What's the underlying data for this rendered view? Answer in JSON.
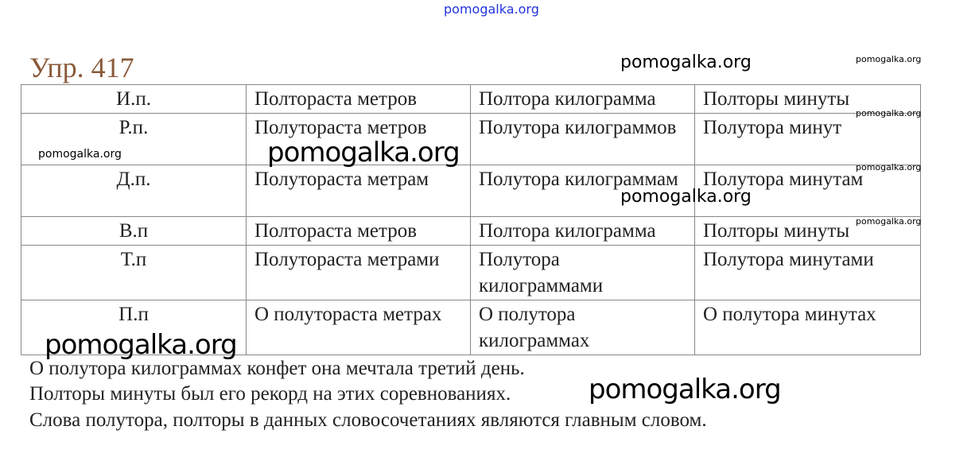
{
  "title": "Упр. 417",
  "table": {
    "rows": [
      [
        "И.п.",
        "Полтораста метров",
        "Полтора килограмма",
        "Полторы минуты"
      ],
      [
        "Р.п.",
        "Полутораста метров",
        "Полутора килограммов",
        "Полутора минут"
      ],
      [
        "Д.п.",
        "Полутораста метрам",
        "Полутора килограммам",
        "Полутора минутам"
      ],
      [
        "В.п",
        "Полтораста метров",
        "Полтора килограмма",
        "Полторы минуты"
      ],
      [
        "Т.п",
        "Полутораста метрами",
        "Полутора килограммами",
        "Полутора минутами"
      ],
      [
        "П.п",
        "О полутораста метрах",
        "О полутора килограммах",
        "О полутора минутах"
      ]
    ]
  },
  "lines": [
    "О полутора килограммах конфет она мечтала третий день.",
    "Полторы минуты был его рекорд на этих соревнованиях.",
    "Слова полутора, полторы в данных словосочетаниях являются главным словом."
  ],
  "watermark": "pomogalka.org"
}
